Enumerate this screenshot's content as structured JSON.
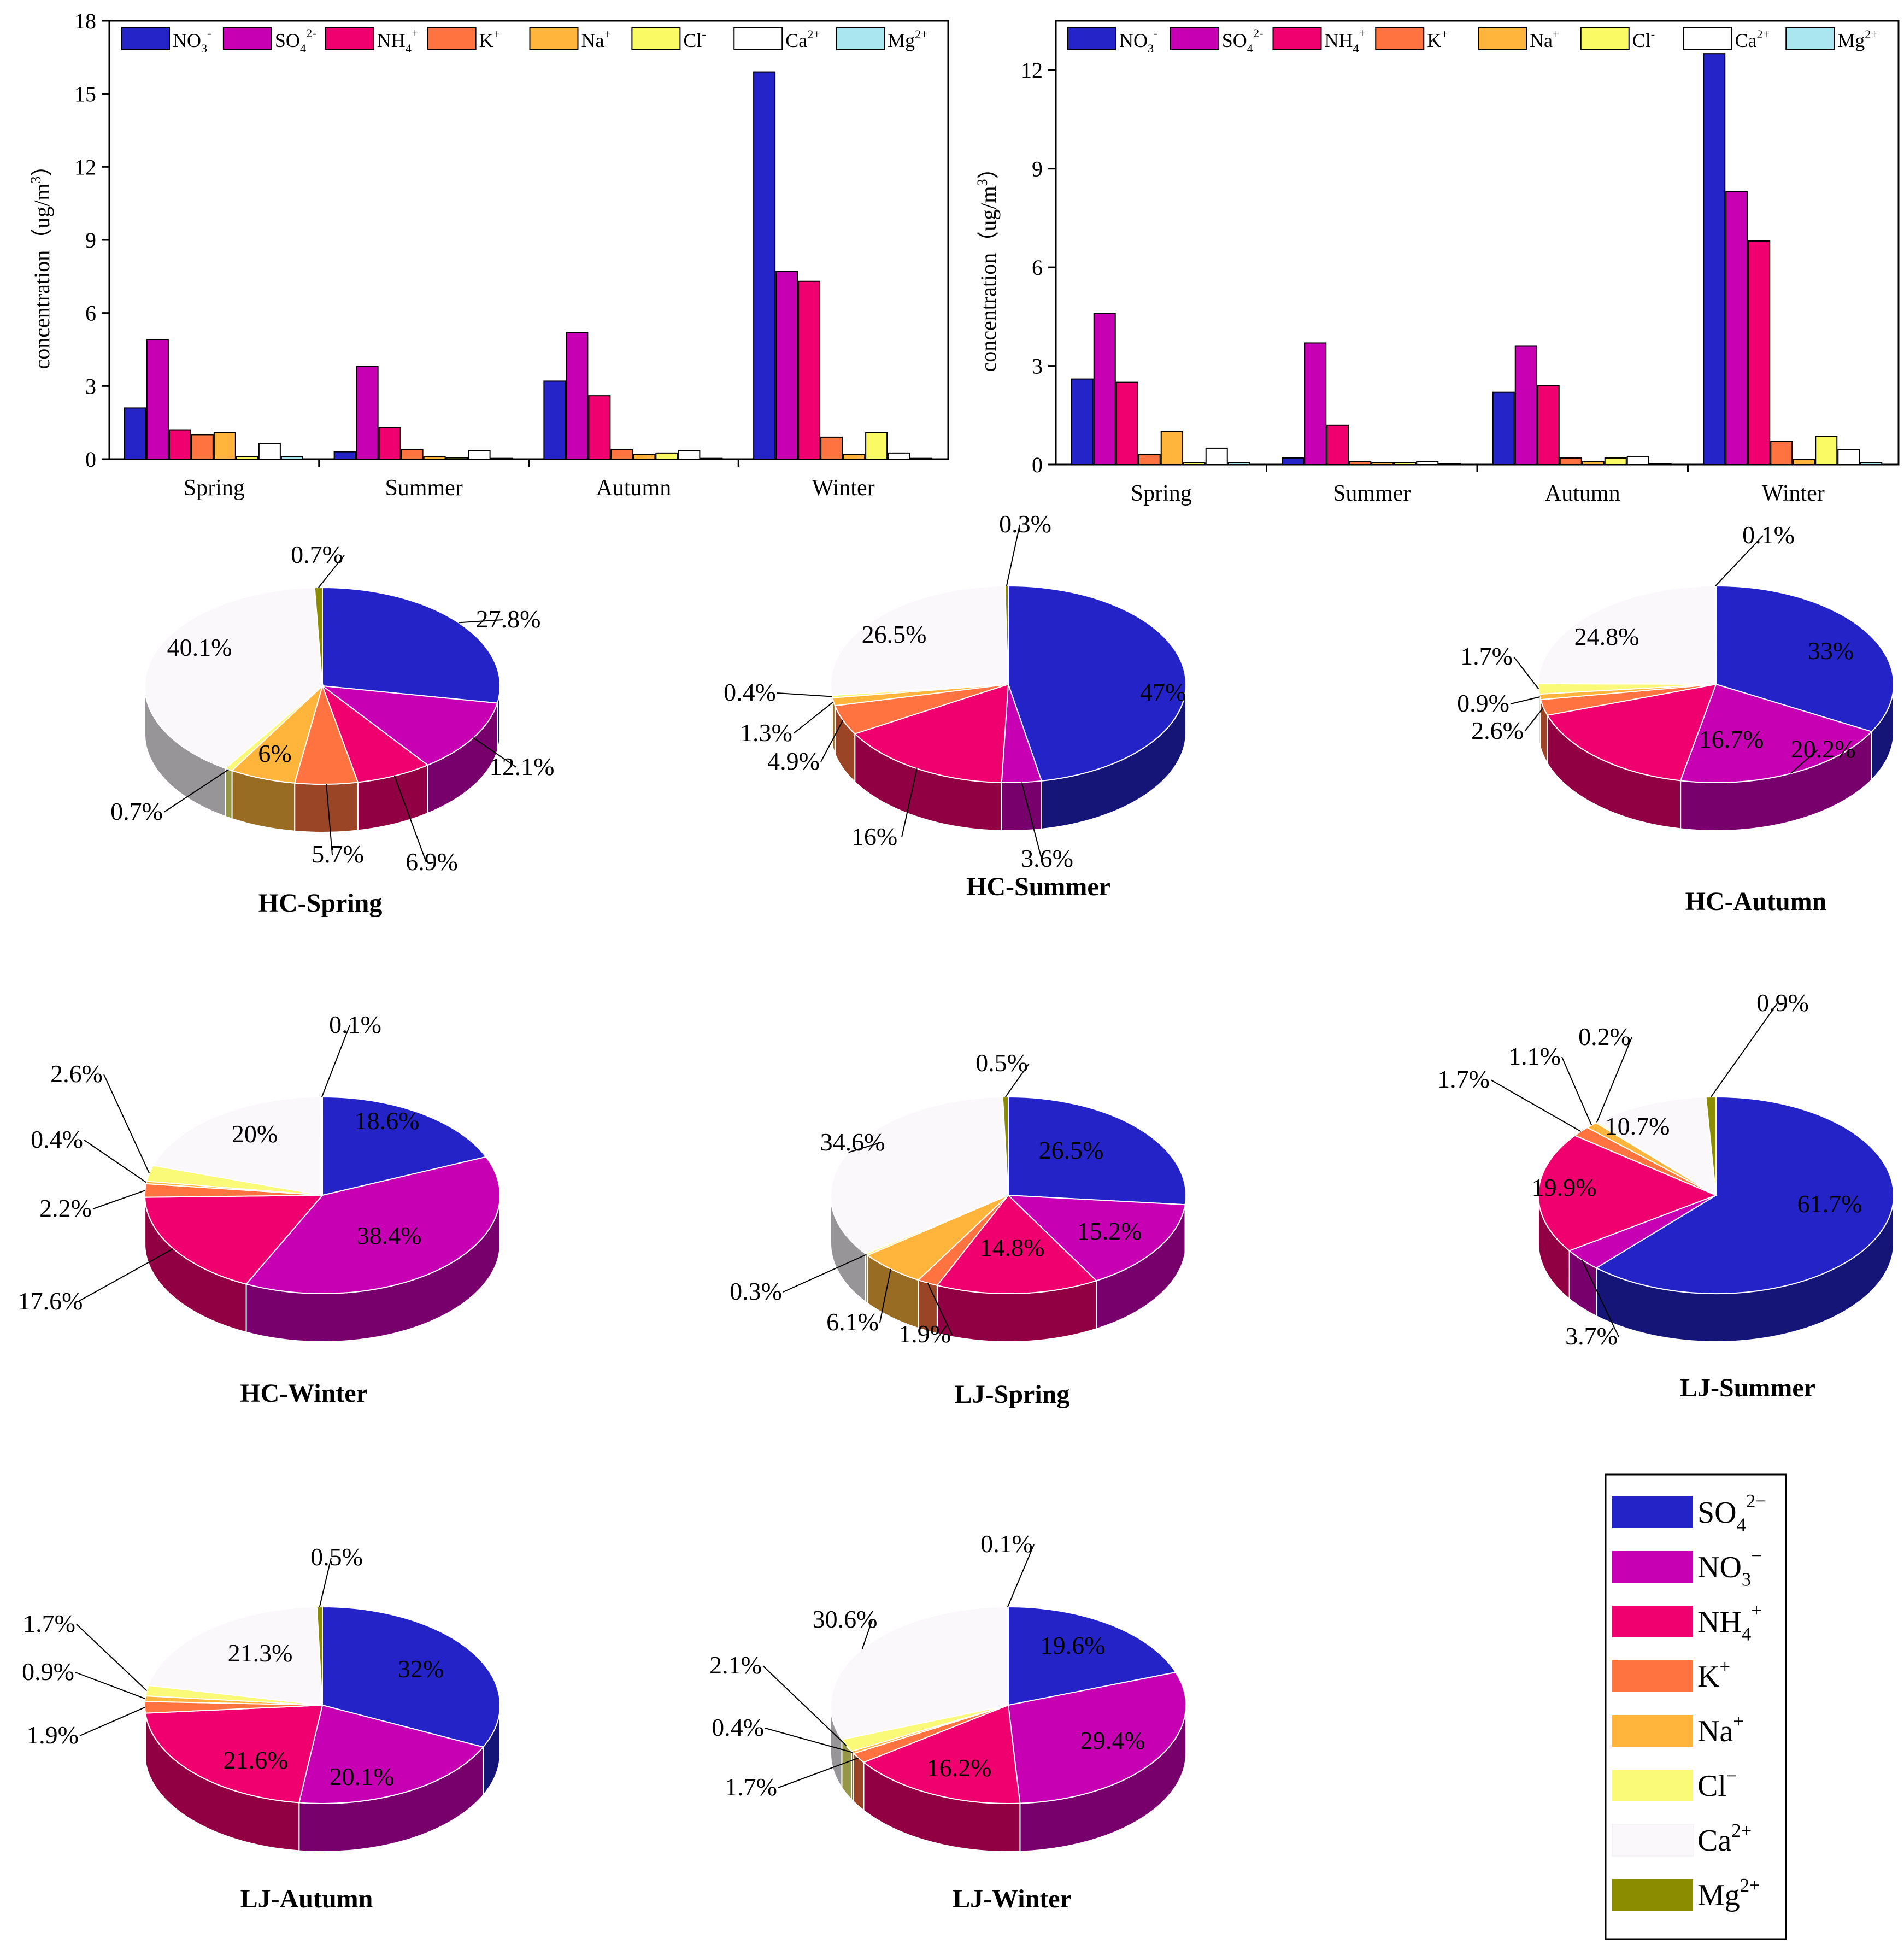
{
  "chart_data": [
    {
      "type": "bar",
      "id": "bar-hc",
      "ylabel": "concentration (ug/m3)",
      "ylim": [
        0,
        18
      ],
      "yticks": [
        0,
        3,
        6,
        9,
        12,
        15,
        18
      ],
      "categories": [
        "Spring",
        "Summer",
        "Autumn",
        "Winter"
      ],
      "series": [
        {
          "name": "NO3-",
          "color": "#2424c8",
          "values": [
            2.1,
            0.3,
            3.2,
            15.9
          ]
        },
        {
          "name": "SO42-",
          "color": "#c800b4",
          "values": [
            4.9,
            3.8,
            5.2,
            7.7
          ]
        },
        {
          "name": "NH4+",
          "color": "#f0006e",
          "values": [
            1.2,
            1.3,
            2.6,
            7.3
          ]
        },
        {
          "name": "K+",
          "color": "#ff7340",
          "values": [
            1.0,
            0.4,
            0.4,
            0.9
          ]
        },
        {
          "name": "Na+",
          "color": "#ffb43c",
          "values": [
            1.1,
            0.1,
            0.2,
            0.2
          ]
        },
        {
          "name": "Cl-",
          "color": "#fafa64",
          "values": [
            0.1,
            0.05,
            0.25,
            1.1
          ]
        },
        {
          "name": "Ca2+",
          "color": "#ffffff",
          "values": [
            0.65,
            0.35,
            0.35,
            0.25
          ]
        },
        {
          "name": "Mg2+",
          "color": "#aae6f0",
          "values": [
            0.1,
            0.03,
            0.03,
            0.03
          ]
        }
      ],
      "legend": [
        "NO3-",
        "SO42-",
        "NH4+",
        "K+",
        "Na+",
        "Cl-",
        "Ca2+",
        "Mg2+"
      ]
    },
    {
      "type": "bar",
      "id": "bar-lj",
      "ylabel": "concentration (ug/m3)",
      "ylim": [
        0,
        13.5
      ],
      "yticks": [
        0,
        3,
        6,
        9,
        12
      ],
      "categories": [
        "Spring",
        "Summer",
        "Autumn",
        "Winter"
      ],
      "series": [
        {
          "name": "NO3-",
          "color": "#2424c8",
          "values": [
            2.6,
            0.2,
            2.2,
            12.5
          ]
        },
        {
          "name": "SO42-",
          "color": "#c800b4",
          "values": [
            4.6,
            3.7,
            3.6,
            8.3
          ]
        },
        {
          "name": "NH4+",
          "color": "#f0006e",
          "values": [
            2.5,
            1.2,
            2.4,
            6.8
          ]
        },
        {
          "name": "K+",
          "color": "#ff7340",
          "values": [
            0.3,
            0.1,
            0.2,
            0.7
          ]
        },
        {
          "name": "Na+",
          "color": "#ffb43c",
          "values": [
            1.0,
            0.05,
            0.1,
            0.15
          ]
        },
        {
          "name": "Cl-",
          "color": "#fafa64",
          "values": [
            0.05,
            0.05,
            0.2,
            0.85
          ]
        },
        {
          "name": "Ca2+",
          "color": "#ffffff",
          "values": [
            0.5,
            0.1,
            0.25,
            0.45
          ]
        },
        {
          "name": "Mg2+",
          "color": "#aae6f0",
          "values": [
            0.05,
            0.03,
            0.03,
            0.05
          ]
        }
      ],
      "legend": [
        "NO3-",
        "SO42-",
        "NH4+",
        "K+",
        "Na+",
        "Cl-",
        "Ca2+",
        "Mg2+"
      ]
    },
    {
      "type": "pie",
      "id": "pie-hc-spring",
      "title": "HC-Spring",
      "slices": [
        {
          "name": "SO42-",
          "value": 27.8,
          "label": "27.8%"
        },
        {
          "name": "NO3-",
          "value": 12.1,
          "label": "12.1%"
        },
        {
          "name": "NH4+",
          "value": 6.9,
          "label": "6.9%"
        },
        {
          "name": "K+",
          "value": 5.7,
          "label": "5.7%"
        },
        {
          "name": "Na+",
          "value": 6,
          "label": "6%"
        },
        {
          "name": "Cl-",
          "value": 0.7,
          "label": "0.7%"
        },
        {
          "name": "Ca2+",
          "value": 40.1,
          "label": "40.1%"
        },
        {
          "name": "Mg2+",
          "value": 0.7,
          "label": "0.7%"
        }
      ]
    },
    {
      "type": "pie",
      "id": "pie-hc-summer",
      "title": "HC-Summer",
      "slices": [
        {
          "name": "SO42-",
          "value": 47,
          "label": "47%"
        },
        {
          "name": "NO3-",
          "value": 3.6,
          "label": "3.6%"
        },
        {
          "name": "NH4+",
          "value": 16,
          "label": "16%"
        },
        {
          "name": "K+",
          "value": 4.9,
          "label": "4.9%"
        },
        {
          "name": "Na+",
          "value": 1.3,
          "label": "1.3%"
        },
        {
          "name": "Cl-",
          "value": 0.4,
          "label": "0.4%"
        },
        {
          "name": "Ca2+",
          "value": 26.5,
          "label": "26.5%"
        },
        {
          "name": "Mg2+",
          "value": 0.3,
          "label": "0.3%"
        }
      ]
    },
    {
      "type": "pie",
      "id": "pie-hc-autumn",
      "title": "HC-Autumn",
      "slices": [
        {
          "name": "SO42-",
          "value": 33,
          "label": "33%"
        },
        {
          "name": "NO3-",
          "value": 20.2,
          "label": "20.2%"
        },
        {
          "name": "NH4+",
          "value": 16.7,
          "label": "16.7%"
        },
        {
          "name": "K+",
          "value": 2.6,
          "label": "2.6%"
        },
        {
          "name": "Na+",
          "value": 0.9,
          "label": "0.9%"
        },
        {
          "name": "Cl-",
          "value": 1.7,
          "label": "1.7%"
        },
        {
          "name": "Ca2+",
          "value": 24.8,
          "label": "24.8%"
        },
        {
          "name": "Mg2+",
          "value": 0.1,
          "label": "0.1%"
        }
      ]
    },
    {
      "type": "pie",
      "id": "pie-hc-winter",
      "title": "HC-Winter",
      "slices": [
        {
          "name": "SO42-",
          "value": 18.6,
          "label": "18.6%"
        },
        {
          "name": "NO3-",
          "value": 38.4,
          "label": "38.4%"
        },
        {
          "name": "NH4+",
          "value": 17.6,
          "label": "17.6%"
        },
        {
          "name": "K+",
          "value": 2.2,
          "label": "2.2%"
        },
        {
          "name": "Na+",
          "value": 0.4,
          "label": "0.4%"
        },
        {
          "name": "Cl-",
          "value": 2.6,
          "label": "2.6%"
        },
        {
          "name": "Ca2+",
          "value": 20,
          "label": "20%"
        },
        {
          "name": "Mg2+",
          "value": 0.1,
          "label": "0.1%"
        }
      ]
    },
    {
      "type": "pie",
      "id": "pie-lj-spring",
      "title": "LJ-Spring",
      "slices": [
        {
          "name": "SO42-",
          "value": 26.5,
          "label": "26.5%"
        },
        {
          "name": "NO3-",
          "value": 15.2,
          "label": "15.2%"
        },
        {
          "name": "NH4+",
          "value": 14.8,
          "label": "14.8%"
        },
        {
          "name": "K+",
          "value": 1.9,
          "label": "1.9%"
        },
        {
          "name": "Na+",
          "value": 6.1,
          "label": "6.1%"
        },
        {
          "name": "Cl-",
          "value": 0.3,
          "label": "0.3%"
        },
        {
          "name": "Ca2+",
          "value": 34.6,
          "label": "34.6%"
        },
        {
          "name": "Mg2+",
          "value": 0.5,
          "label": "0.5%"
        }
      ]
    },
    {
      "type": "pie",
      "id": "pie-lj-summer",
      "title": "LJ-Summer",
      "slices": [
        {
          "name": "SO42-",
          "value": 61.7,
          "label": "61.7%"
        },
        {
          "name": "NO3-",
          "value": 3.7,
          "label": "3.7%"
        },
        {
          "name": "NH4+",
          "value": 19.9,
          "label": "19.9%"
        },
        {
          "name": "K+",
          "value": 1.7,
          "label": "1.7%"
        },
        {
          "name": "Na+",
          "value": 1.1,
          "label": "1.1%"
        },
        {
          "name": "Cl-",
          "value": 0.2,
          "label": "0.2%"
        },
        {
          "name": "Ca2+",
          "value": 10.7,
          "label": "10.7%"
        },
        {
          "name": "Mg2+",
          "value": 0.9,
          "label": "0.9%"
        }
      ]
    },
    {
      "type": "pie",
      "id": "pie-lj-autumn",
      "title": "LJ-Autumn",
      "slices": [
        {
          "name": "SO42-",
          "value": 32,
          "label": "32%"
        },
        {
          "name": "NO3-",
          "value": 20.1,
          "label": "20.1%"
        },
        {
          "name": "NH4+",
          "value": 21.6,
          "label": "21.6%"
        },
        {
          "name": "K+",
          "value": 1.9,
          "label": "1.9%"
        },
        {
          "name": "Na+",
          "value": 0.9,
          "label": "0.9%"
        },
        {
          "name": "Cl-",
          "value": 1.7,
          "label": "1.7%"
        },
        {
          "name": "Ca2+",
          "value": 21.3,
          "label": "21.3%"
        },
        {
          "name": "Mg2+",
          "value": 0.5,
          "label": "0.5%"
        }
      ]
    },
    {
      "type": "pie",
      "id": "pie-lj-winter",
      "title": "LJ-Winter",
      "slices": [
        {
          "name": "SO42-",
          "value": 19.6,
          "label": "19.6%"
        },
        {
          "name": "NO3-",
          "value": 29.4,
          "label": "29.4%"
        },
        {
          "name": "NH4+",
          "value": 16.2,
          "label": "16.2%"
        },
        {
          "name": "K+",
          "value": 1.7,
          "label": "1.7%"
        },
        {
          "name": "Na+",
          "value": 0.4,
          "label": "0.4%"
        },
        {
          "name": "Cl-",
          "value": 2.1,
          "label": "2.1%"
        },
        {
          "name": "Ca2+",
          "value": 30.6,
          "label": "30.6%"
        },
        {
          "name": "Mg2+",
          "value": 0.1,
          "label": "0.1%"
        }
      ]
    }
  ],
  "pie_legend": [
    {
      "base": "SO",
      "sub": "4",
      "sup": "2−",
      "color": "#2323c8"
    },
    {
      "base": "NO",
      "sub": "3",
      "sup": "−",
      "color": "#c800b4"
    },
    {
      "base": "NH",
      "sub": "4",
      "sup": "+",
      "color": "#f0006e"
    },
    {
      "base": "K",
      "sub": "",
      "sup": "+",
      "color": "#ff7340"
    },
    {
      "base": "Na",
      "sub": "",
      "sup": "+",
      "color": "#ffb43c"
    },
    {
      "base": "Cl",
      "sub": "",
      "sup": "−",
      "color": "#fafa78"
    },
    {
      "base": "Ca",
      "sub": "",
      "sup": "2+",
      "color": "#fbf8fc"
    },
    {
      "base": "Mg",
      "sub": "",
      "sup": "2+",
      "color": "#8c8c00"
    }
  ],
  "bar_legend": [
    {
      "base": "NO",
      "sub": "3",
      "sup": "-"
    },
    {
      "base": "SO",
      "sub": "4",
      "sup": "2-"
    },
    {
      "base": "NH",
      "sub": "4",
      "sup": "+"
    },
    {
      "base": "K",
      "sub": "",
      "sup": "+"
    },
    {
      "base": "Na",
      "sub": "",
      "sup": "+"
    },
    {
      "base": "Cl",
      "sub": "",
      "sup": "-"
    },
    {
      "base": "Ca",
      "sub": "",
      "sup": "2+"
    },
    {
      "base": "Mg",
      "sub": "",
      "sup": "2+"
    }
  ],
  "pie_colors": {
    "SO42-": "#2323c8",
    "NO3-": "#c800b4",
    "NH4+": "#f0006e",
    "K+": "#ff7340",
    "Na+": "#ffb43c",
    "Cl-": "#fafa78",
    "Ca2+": "#fbf8fc",
    "Mg2+": "#8c8c00"
  }
}
